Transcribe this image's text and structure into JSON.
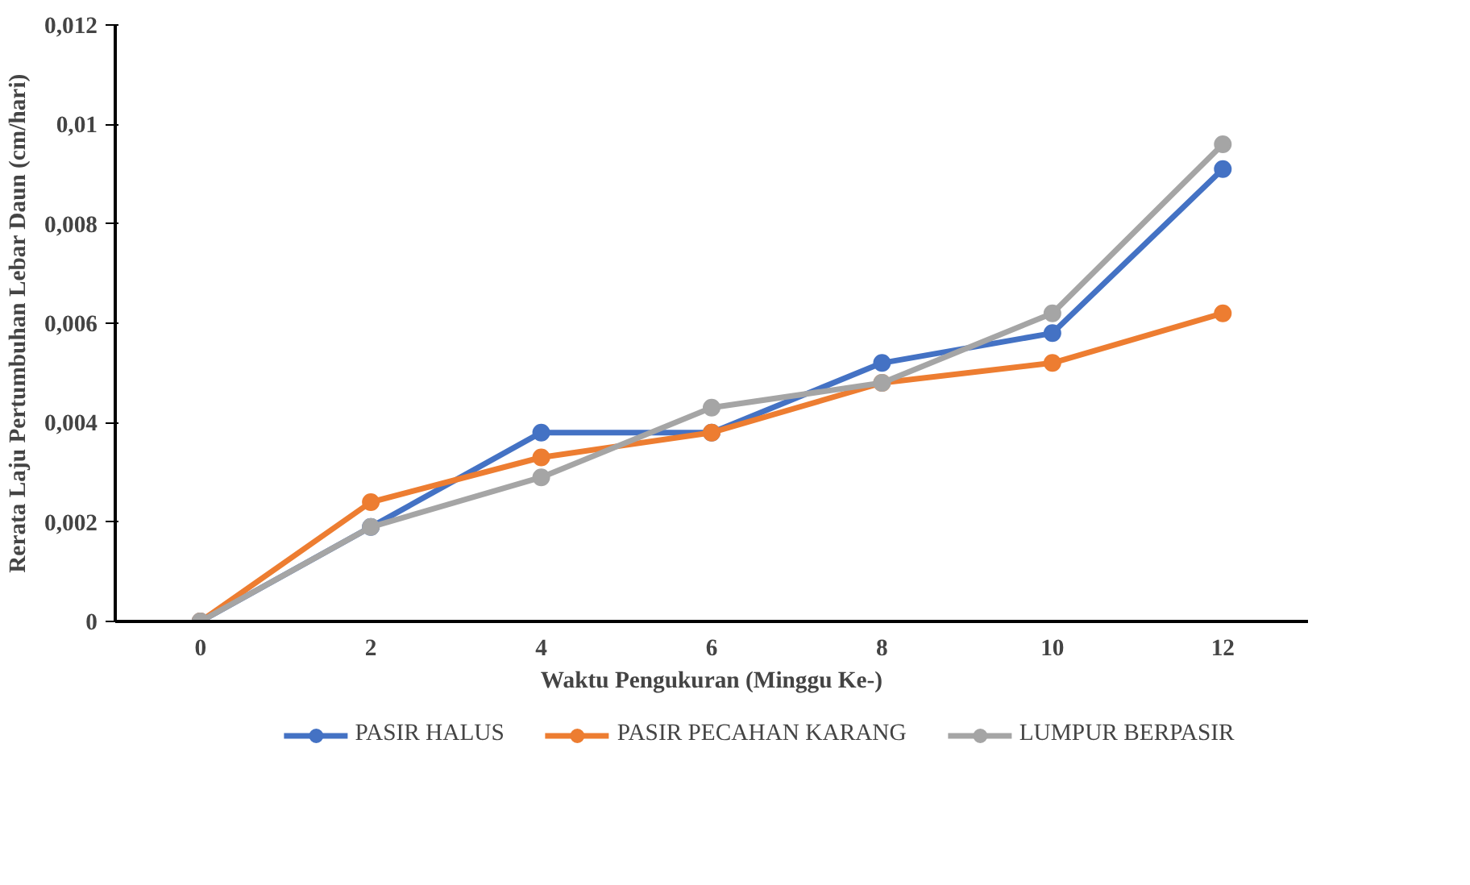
{
  "chart_data": {
    "type": "line",
    "xlabel": "Waktu Pengukuran (Minggu Ke-)",
    "ylabel": "Rerata Laju Pertumbuhan Lebar Daun (cm/hari)",
    "categories": [
      "0",
      "2",
      "4",
      "6",
      "8",
      "10",
      "12"
    ],
    "series": [
      {
        "name": "PASIR HALUS",
        "color": "#4472c4",
        "values": [
          0,
          0.0019,
          0.0038,
          0.0038,
          0.0052,
          0.0058,
          0.0091
        ]
      },
      {
        "name": "PASIR PECAHAN KARANG",
        "color": "#ed7d31",
        "values": [
          0,
          0.0024,
          0.0033,
          0.0038,
          0.0048,
          0.0052,
          0.0062
        ]
      },
      {
        "name": "LUMPUR BERPASIR",
        "color": "#a5a5a5",
        "values": [
          0,
          0.0019,
          0.0029,
          0.0043,
          0.0048,
          0.0062,
          0.0096
        ]
      }
    ],
    "ylim": [
      0,
      0.012
    ],
    "yticks": [
      {
        "value": 0,
        "label": "0"
      },
      {
        "value": 0.002,
        "label": "0,002"
      },
      {
        "value": 0.004,
        "label": "0,004"
      },
      {
        "value": 0.006,
        "label": "0,006"
      },
      {
        "value": 0.008,
        "label": "0,008"
      },
      {
        "value": 0.01,
        "label": "0,01"
      },
      {
        "value": 0.012,
        "label": "0,012"
      }
    ],
    "grid": false,
    "legend": "bottom",
    "marker": "circle",
    "line_style": "solid"
  }
}
